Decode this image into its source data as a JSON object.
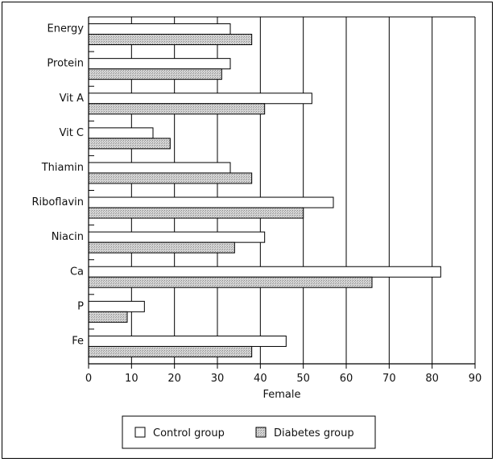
{
  "chart_data": {
    "type": "bar",
    "orientation": "horizontal",
    "title": "",
    "xlabel": "Female",
    "ylabel": "",
    "xlim": [
      0,
      90
    ],
    "x_ticks": [
      0,
      10,
      20,
      30,
      40,
      50,
      60,
      70,
      80,
      90
    ],
    "grid": "vertical gridlines",
    "legend_position": "bottom",
    "categories": [
      "Energy",
      "Protein",
      "Vit A",
      "Vit C",
      "Thiamin",
      "Riboflavin",
      "Niacin",
      "Ca",
      "P",
      "Fe"
    ],
    "series": [
      {
        "name": "Control group",
        "color": "#ffffff",
        "values": [
          33,
          33,
          52,
          15,
          33,
          57,
          41,
          82,
          13,
          46
        ]
      },
      {
        "name": "Diabetes group",
        "color": "#c8c8c8",
        "values": [
          38,
          31,
          41,
          19,
          38,
          50,
          34,
          66,
          9,
          38
        ]
      }
    ]
  }
}
